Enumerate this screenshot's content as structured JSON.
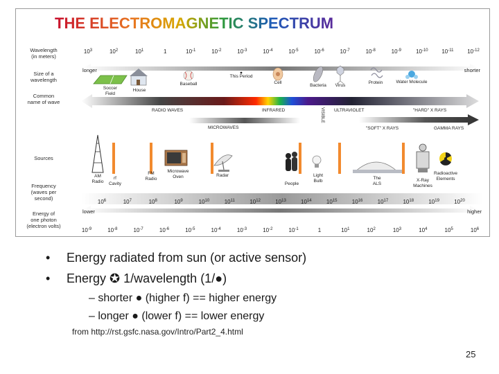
{
  "figure": {
    "title": "THE ELECTROMAGNETIC SPECTRUM",
    "row_labels": {
      "wavelength": [
        "Wavelength",
        "(in meters)"
      ],
      "size": [
        "Size of a",
        "wavelength"
      ],
      "common_name": [
        "Common",
        "name of wave"
      ],
      "sources": [
        "Sources"
      ],
      "frequency": [
        "Frequency",
        "(waves per",
        "second)"
      ],
      "energy": [
        "Energy of",
        "one photon",
        "(electron volts)"
      ]
    },
    "wavelength_ticks": [
      {
        "b": "10",
        "e": "3"
      },
      {
        "b": "10",
        "e": "2"
      },
      {
        "b": "10",
        "e": "1"
      },
      {
        "b": "1",
        "e": ""
      },
      {
        "b": "10",
        "e": "-1"
      },
      {
        "b": "10",
        "e": "-2"
      },
      {
        "b": "10",
        "e": "-3"
      },
      {
        "b": "10",
        "e": "-4"
      },
      {
        "b": "10",
        "e": "-5"
      },
      {
        "b": "10",
        "e": "-6"
      },
      {
        "b": "10",
        "e": "-7"
      },
      {
        "b": "10",
        "e": "-8"
      },
      {
        "b": "10",
        "e": "-9"
      },
      {
        "b": "10",
        "e": "-10"
      },
      {
        "b": "10",
        "e": "-11"
      },
      {
        "b": "10",
        "e": "-12"
      }
    ],
    "longer": "longer",
    "shorter": "shorter",
    "size_items": [
      "Soccer Field",
      "House",
      "Baseball",
      "This Period",
      "Cell",
      "Bacteria",
      "Virus",
      "Protein",
      "Water Molecule"
    ],
    "wave_names": {
      "radio": "RADIO WAVES",
      "infrared": "INFRARED",
      "visible": "VISIBLE",
      "ultraviolet": "ULTRAVIOLET",
      "hard_xrays": "\"HARD\" X RAYS",
      "microwaves": "MICROWAVES",
      "soft_xrays": "\"SOFT\" X RAYS",
      "gamma": "GAMMA RAYS"
    },
    "sources": [
      "AM Radio",
      "rf Cavity",
      "FM Radio",
      "Microwave Oven",
      "Radar",
      "People",
      "Light Bulb",
      "The ALS",
      "X-Ray Machines",
      "Radioactive Elements"
    ],
    "frequency_ticks": [
      {
        "b": "10",
        "e": "6"
      },
      {
        "b": "10",
        "e": "7"
      },
      {
        "b": "10",
        "e": "8"
      },
      {
        "b": "10",
        "e": "9"
      },
      {
        "b": "10",
        "e": "10"
      },
      {
        "b": "10",
        "e": "11"
      },
      {
        "b": "10",
        "e": "12"
      },
      {
        "b": "10",
        "e": "13"
      },
      {
        "b": "10",
        "e": "14"
      },
      {
        "b": "10",
        "e": "15"
      },
      {
        "b": "10",
        "e": "16"
      },
      {
        "b": "10",
        "e": "17"
      },
      {
        "b": "10",
        "e": "18"
      },
      {
        "b": "10",
        "e": "19"
      },
      {
        "b": "10",
        "e": "20"
      }
    ],
    "energy_ticks": [
      {
        "b": "10",
        "e": "-9"
      },
      {
        "b": "10",
        "e": "-8"
      },
      {
        "b": "10",
        "e": "-7"
      },
      {
        "b": "10",
        "e": "-6"
      },
      {
        "b": "10",
        "e": "-5"
      },
      {
        "b": "10",
        "e": "-4"
      },
      {
        "b": "10",
        "e": "-3"
      },
      {
        "b": "10",
        "e": "-2"
      },
      {
        "b": "10",
        "e": "-1"
      },
      {
        "b": "1",
        "e": ""
      },
      {
        "b": "10",
        "e": "1"
      },
      {
        "b": "10",
        "e": "2"
      },
      {
        "b": "10",
        "e": "3"
      },
      {
        "b": "10",
        "e": "4"
      },
      {
        "b": "10",
        "e": "5"
      },
      {
        "b": "10",
        "e": "6"
      }
    ],
    "lower": "lower",
    "higher": "higher"
  },
  "slide": {
    "bullets": [
      {
        "marker": "•",
        "text": "Energy radiated from sun (or active sensor)"
      },
      {
        "marker": "•",
        "text": "Energy ✪ 1/wavelength (1/●)"
      }
    ],
    "sub_bullets": [
      "– shorter ● (higher f) == higher energy",
      "– longer ● (lower f) == lower energy"
    ],
    "citation": "from http://rst.gsfc.nasa.gov/Intro/Part2_4.html",
    "page_number": "25"
  },
  "colors": {
    "title_gradient": [
      "#c8102e",
      "#e87722",
      "#e8b800",
      "#3a9a3a",
      "#1e5bb8",
      "#5a2a9a"
    ],
    "row_label": "#2a2a2a",
    "axis_text": "#222222",
    "source_orange": "#f28a2e"
  }
}
